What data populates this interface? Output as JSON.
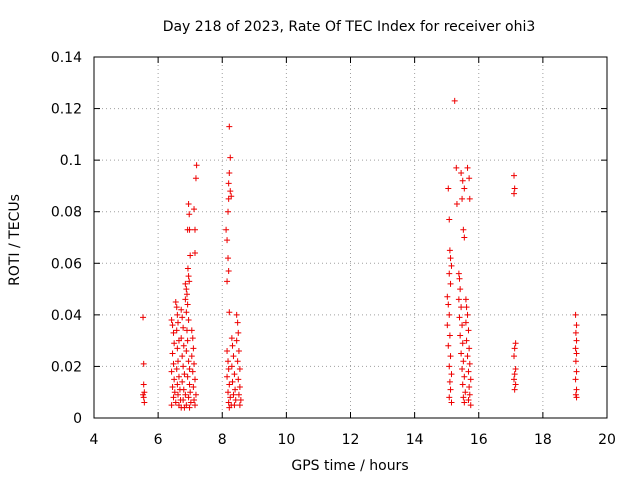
{
  "chart_data": {
    "type": "scatter",
    "title": "Day 218 of 2023, Rate Of TEC Index for receiver ohi3",
    "xlabel": "GPS time / hours",
    "ylabel": "ROTI / TECUs",
    "xlim": [
      4,
      20
    ],
    "ylim": [
      0,
      0.14
    ],
    "xticks": [
      4,
      6,
      8,
      10,
      12,
      14,
      16,
      18,
      20
    ],
    "yticks": [
      0,
      0.02,
      0.04,
      0.06,
      0.08,
      0.1,
      0.12,
      0.14
    ],
    "ytick_labels": [
      "0",
      "0.02",
      "0.04",
      "0.06",
      "0.08",
      "0.1",
      "0.12",
      "0.14"
    ],
    "grid": true,
    "marker": "plus",
    "color": "#ee0000",
    "series": [
      {
        "points": [
          [
            5.53,
            0.039
          ],
          [
            5.55,
            0.021
          ],
          [
            5.55,
            0.013
          ],
          [
            5.57,
            0.01
          ],
          [
            5.55,
            0.008
          ],
          [
            5.57,
            0.006
          ],
          [
            5.53,
            0.009
          ],
          [
            6.42,
            0.038
          ],
          [
            6.45,
            0.036
          ],
          [
            6.48,
            0.033
          ],
          [
            6.5,
            0.029
          ],
          [
            6.45,
            0.025
          ],
          [
            6.48,
            0.021
          ],
          [
            6.42,
            0.018
          ],
          [
            6.5,
            0.015
          ],
          [
            6.45,
            0.012
          ],
          [
            6.52,
            0.01
          ],
          [
            6.48,
            0.008
          ],
          [
            6.55,
            0.006
          ],
          [
            6.42,
            0.005
          ],
          [
            6.55,
            0.045
          ],
          [
            6.58,
            0.043
          ],
          [
            6.6,
            0.04
          ],
          [
            6.62,
            0.037
          ],
          [
            6.58,
            0.034
          ],
          [
            6.65,
            0.03
          ],
          [
            6.6,
            0.027
          ],
          [
            6.62,
            0.022
          ],
          [
            6.58,
            0.019
          ],
          [
            6.65,
            0.016
          ],
          [
            6.6,
            0.013
          ],
          [
            6.68,
            0.011
          ],
          [
            6.62,
            0.009
          ],
          [
            6.7,
            0.007
          ],
          [
            6.65,
            0.005
          ],
          [
            6.72,
            0.004
          ],
          [
            6.72,
            0.042
          ],
          [
            6.75,
            0.039
          ],
          [
            6.78,
            0.035
          ],
          [
            6.72,
            0.031
          ],
          [
            6.8,
            0.028
          ],
          [
            6.75,
            0.024
          ],
          [
            6.78,
            0.02
          ],
          [
            6.82,
            0.017
          ],
          [
            6.75,
            0.014
          ],
          [
            6.8,
            0.011
          ],
          [
            6.85,
            0.009
          ],
          [
            6.78,
            0.007
          ],
          [
            6.88,
            0.005
          ],
          [
            6.82,
            0.004
          ],
          [
            6.85,
            0.052
          ],
          [
            6.88,
            0.05
          ],
          [
            6.9,
            0.048
          ],
          [
            6.85,
            0.046
          ],
          [
            6.92,
            0.044
          ],
          [
            6.88,
            0.041
          ],
          [
            6.95,
            0.038
          ],
          [
            6.9,
            0.034
          ],
          [
            6.92,
            0.03
          ],
          [
            6.88,
            0.026
          ],
          [
            6.95,
            0.022
          ],
          [
            6.98,
            0.019
          ],
          [
            6.92,
            0.016
          ],
          [
            6.98,
            0.013
          ],
          [
            7.0,
            0.01
          ],
          [
            6.95,
            0.008
          ],
          [
            7.02,
            0.006
          ],
          [
            6.98,
            0.004
          ],
          [
            6.92,
            0.073
          ],
          [
            6.95,
            0.083
          ],
          [
            6.97,
            0.079
          ],
          [
            6.98,
            0.073
          ],
          [
            7.0,
            0.063
          ],
          [
            6.93,
            0.058
          ],
          [
            6.95,
            0.055
          ],
          [
            6.97,
            0.053
          ],
          [
            7.05,
            0.034
          ],
          [
            7.08,
            0.031
          ],
          [
            7.1,
            0.027
          ],
          [
            7.05,
            0.024
          ],
          [
            7.12,
            0.021
          ],
          [
            7.08,
            0.018
          ],
          [
            7.15,
            0.015
          ],
          [
            7.1,
            0.012
          ],
          [
            7.18,
            0.009
          ],
          [
            7.12,
            0.007
          ],
          [
            7.15,
            0.005
          ],
          [
            7.12,
            0.081
          ],
          [
            7.15,
            0.064
          ],
          [
            7.18,
            0.093
          ],
          [
            7.2,
            0.098
          ],
          [
            7.15,
            0.073
          ],
          [
            8.12,
            0.073
          ],
          [
            8.15,
            0.069
          ],
          [
            8.18,
            0.08
          ],
          [
            8.2,
            0.085
          ],
          [
            8.22,
            0.113
          ],
          [
            8.25,
            0.101
          ],
          [
            8.22,
            0.095
          ],
          [
            8.2,
            0.091
          ],
          [
            8.25,
            0.088
          ],
          [
            8.28,
            0.086
          ],
          [
            8.18,
            0.062
          ],
          [
            8.2,
            0.057
          ],
          [
            8.15,
            0.053
          ],
          [
            8.22,
            0.041
          ],
          [
            8.15,
            0.026
          ],
          [
            8.18,
            0.022
          ],
          [
            8.2,
            0.019
          ],
          [
            8.15,
            0.016
          ],
          [
            8.22,
            0.013
          ],
          [
            8.18,
            0.01
          ],
          [
            8.25,
            0.008
          ],
          [
            8.2,
            0.006
          ],
          [
            8.28,
            0.005
          ],
          [
            8.22,
            0.004
          ],
          [
            8.3,
            0.031
          ],
          [
            8.32,
            0.028
          ],
          [
            8.35,
            0.024
          ],
          [
            8.3,
            0.02
          ],
          [
            8.38,
            0.017
          ],
          [
            8.32,
            0.014
          ],
          [
            8.4,
            0.011
          ],
          [
            8.35,
            0.009
          ],
          [
            8.42,
            0.007
          ],
          [
            8.38,
            0.005
          ],
          [
            8.45,
            0.04
          ],
          [
            8.48,
            0.037
          ],
          [
            8.5,
            0.033
          ],
          [
            8.45,
            0.03
          ],
          [
            8.52,
            0.026
          ],
          [
            8.48,
            0.022
          ],
          [
            8.55,
            0.019
          ],
          [
            8.5,
            0.015
          ],
          [
            8.55,
            0.012
          ],
          [
            8.52,
            0.009
          ],
          [
            8.58,
            0.007
          ],
          [
            8.55,
            0.005
          ],
          [
            15.02,
            0.047
          ],
          [
            15.05,
            0.044
          ],
          [
            15.08,
            0.04
          ],
          [
            15.02,
            0.036
          ],
          [
            15.1,
            0.032
          ],
          [
            15.05,
            0.028
          ],
          [
            15.12,
            0.024
          ],
          [
            15.08,
            0.02
          ],
          [
            15.15,
            0.017
          ],
          [
            15.1,
            0.014
          ],
          [
            15.12,
            0.011
          ],
          [
            15.08,
            0.008
          ],
          [
            15.15,
            0.006
          ],
          [
            15.05,
            0.089
          ],
          [
            15.08,
            0.077
          ],
          [
            15.1,
            0.065
          ],
          [
            15.12,
            0.062
          ],
          [
            15.15,
            0.059
          ],
          [
            15.08,
            0.056
          ],
          [
            15.12,
            0.052
          ],
          [
            15.25,
            0.123
          ],
          [
            15.3,
            0.097
          ],
          [
            15.32,
            0.083
          ],
          [
            15.38,
            0.056
          ],
          [
            15.4,
            0.054
          ],
          [
            15.42,
            0.05
          ],
          [
            15.38,
            0.046
          ],
          [
            15.45,
            0.043
          ],
          [
            15.4,
            0.039
          ],
          [
            15.48,
            0.036
          ],
          [
            15.42,
            0.032
          ],
          [
            15.5,
            0.029
          ],
          [
            15.45,
            0.025
          ],
          [
            15.52,
            0.022
          ],
          [
            15.48,
            0.019
          ],
          [
            15.55,
            0.016
          ],
          [
            15.5,
            0.013
          ],
          [
            15.58,
            0.01
          ],
          [
            15.52,
            0.008
          ],
          [
            15.55,
            0.006
          ],
          [
            15.45,
            0.095
          ],
          [
            15.5,
            0.092
          ],
          [
            15.55,
            0.089
          ],
          [
            15.48,
            0.085
          ],
          [
            15.52,
            0.073
          ],
          [
            15.55,
            0.07
          ],
          [
            15.6,
            0.046
          ],
          [
            15.62,
            0.043
          ],
          [
            15.65,
            0.04
          ],
          [
            15.6,
            0.037
          ],
          [
            15.68,
            0.034
          ],
          [
            15.62,
            0.03
          ],
          [
            15.7,
            0.027
          ],
          [
            15.65,
            0.024
          ],
          [
            15.72,
            0.021
          ],
          [
            15.68,
            0.018
          ],
          [
            15.75,
            0.015
          ],
          [
            15.7,
            0.012
          ],
          [
            15.72,
            0.009
          ],
          [
            15.68,
            0.007
          ],
          [
            15.75,
            0.005
          ],
          [
            15.65,
            0.097
          ],
          [
            15.7,
            0.093
          ],
          [
            15.72,
            0.085
          ],
          [
            17.1,
            0.094
          ],
          [
            17.12,
            0.089
          ],
          [
            17.1,
            0.087
          ],
          [
            17.15,
            0.029
          ],
          [
            17.12,
            0.027
          ],
          [
            17.1,
            0.024
          ],
          [
            17.15,
            0.019
          ],
          [
            17.12,
            0.017
          ],
          [
            17.1,
            0.015
          ],
          [
            17.15,
            0.013
          ],
          [
            17.12,
            0.011
          ],
          [
            19.02,
            0.04
          ],
          [
            19.05,
            0.036
          ],
          [
            19.03,
            0.033
          ],
          [
            19.05,
            0.03
          ],
          [
            19.02,
            0.027
          ],
          [
            19.05,
            0.025
          ],
          [
            19.03,
            0.022
          ],
          [
            19.05,
            0.018
          ],
          [
            19.02,
            0.015
          ],
          [
            19.05,
            0.011
          ],
          [
            19.03,
            0.009
          ],
          [
            19.05,
            0.008
          ]
        ]
      }
    ]
  }
}
